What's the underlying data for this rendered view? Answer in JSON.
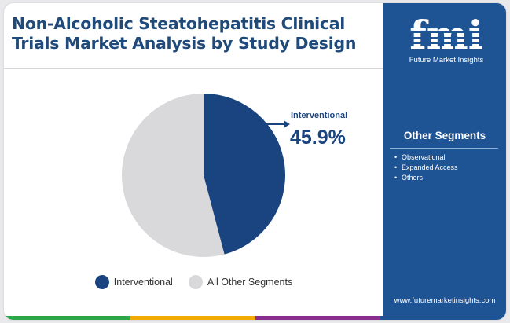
{
  "header": {
    "title": "Non-Alcoholic Steatohepatitis Clinical Trials Market Analysis by Study Design"
  },
  "chart_data": {
    "type": "pie",
    "title": "",
    "slices": [
      {
        "label": "Interventional",
        "value": 45.9,
        "color": "#1a4480"
      },
      {
        "label": "All Other Segments",
        "value": 54.1,
        "color": "#d9d9db"
      }
    ],
    "annotation": {
      "label": "Interventional",
      "value_text": "45.9%"
    },
    "legend_position": "bottom"
  },
  "legend": {
    "items": [
      {
        "label": "Interventional",
        "color": "#1a4480"
      },
      {
        "label": "All Other Segments",
        "color": "#d9d9db"
      }
    ]
  },
  "sidebar": {
    "logo_text": "fmi",
    "logo_subtitle": "Future Market Insights",
    "segments_title": "Other Segments",
    "segments": [
      "Observational",
      "Expanded Access",
      "Others"
    ],
    "website": "www.futuremarketinsights.com"
  },
  "colors": {
    "title": "#1f4a7a",
    "panel": "#1f5494",
    "bottom_bar": [
      "#2aa84a",
      "#f2a900",
      "#8b2f8f",
      "#1f5494"
    ]
  }
}
